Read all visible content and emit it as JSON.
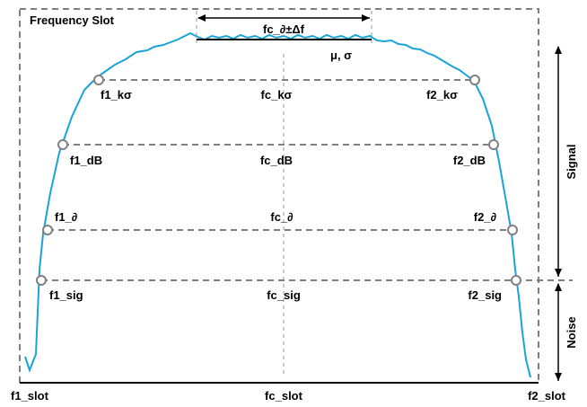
{
  "title": "Frequency Slot",
  "top_bracket": {
    "label": "fc_∂±Δf",
    "mean_sigma_label": "μ, σ"
  },
  "levels": [
    {
      "left": "f1_kσ",
      "center": "fc_kσ",
      "right": "f2_kσ"
    },
    {
      "left": "f1_dB",
      "center": "fc_dB",
      "right": "f2_dB"
    },
    {
      "left": "f1_∂",
      "center": "fc_∂",
      "right": "f2_∂"
    },
    {
      "left": "f1_sig",
      "center": "fc_sig",
      "right": "f2_sig"
    }
  ],
  "bottom_axis": {
    "left": "f1_slot",
    "center": "fc_slot",
    "right": "f2_slot"
  },
  "side_labels": {
    "signal": "Signal",
    "noise": "Noise"
  },
  "colors": {
    "spectrum": "#1aa3d9",
    "dashed": "#7f7f7f",
    "axis": "#000000",
    "marker_edge": "#808080"
  }
}
